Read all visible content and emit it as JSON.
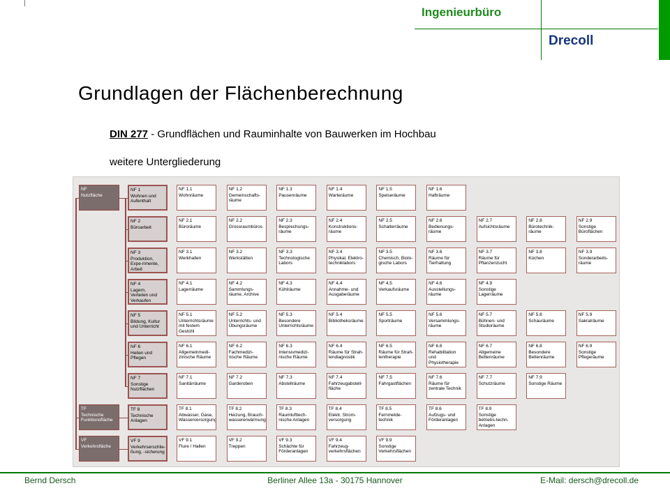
{
  "header": {
    "office": "Ingenieurbüro",
    "company": "Drecoll"
  },
  "title": "Grundlagen der Flächenberechnung",
  "subtitle": {
    "din": "DIN 277",
    "sep": " - ",
    "text": "Grundflächen und Rauminhalte von Bauwerken im Hochbau",
    "line2": "weitere Untergliederung"
  },
  "colors": {
    "accent_green": "#009b00",
    "line_green": "#007a00",
    "brand_navy": "#16357d",
    "diagram_maroon": "#8f4a44",
    "category_gray": "#7c6d6d",
    "panel_gray": "#e9e6e6"
  },
  "diagram": {
    "rows": [
      {
        "category": {
          "code": "NF",
          "label": "Nutzfläche"
        },
        "group": {
          "code": "NF 1",
          "label": "Wohnen und Aufenthalt"
        },
        "items": [
          {
            "code": "NF 1.1",
            "label": "Wohnräume"
          },
          {
            "code": "NF 1.2",
            "label": "Gemeinschafts-räume"
          },
          {
            "code": "NF 1.3",
            "label": "Pausenräume"
          },
          {
            "code": "NF 1.4",
            "label": "Warteräume"
          },
          {
            "code": "NF 1.5",
            "label": "Speiseräume"
          },
          {
            "code": "NF 1.6",
            "label": "Hafträume"
          }
        ]
      },
      {
        "category": null,
        "group": {
          "code": "NF 2",
          "label": "Büroarbeit"
        },
        "items": [
          {
            "code": "NF 2.1",
            "label": "Büroräume"
          },
          {
            "code": "NF 2.2",
            "label": "Grossraumbüros"
          },
          {
            "code": "NF 2.3",
            "label": "Besprechungs-räume"
          },
          {
            "code": "NF 2.4",
            "label": "Konstruktions-räume"
          },
          {
            "code": "NF 2.5",
            "label": "Schalterräume"
          },
          {
            "code": "NF 2.6",
            "label": "Bedienungs-räume"
          },
          {
            "code": "NF 2.7",
            "label": "Aufsichtsräume"
          },
          {
            "code": "NF 2.8",
            "label": "Bürotechnik-räume"
          },
          {
            "code": "NF 2.9",
            "label": "Sonstige Büroflächen"
          }
        ]
      },
      {
        "category": null,
        "group": {
          "code": "NF 3",
          "label": "Produktion, Expe-rimente, Arbeit"
        },
        "items": [
          {
            "code": "NF 3.1",
            "label": "Werkhallen"
          },
          {
            "code": "NF 3.2",
            "label": "Werkstätten"
          },
          {
            "code": "NF 3.3",
            "label": "Technologische Labors"
          },
          {
            "code": "NF 3.4",
            "label": "Physikal. Elektro-techniklabors"
          },
          {
            "code": "NF 3.5",
            "label": "Chemisch, Biolo-gische Labors"
          },
          {
            "code": "NF 3.6",
            "label": "Räume für Tierhaltung"
          },
          {
            "code": "NF 3.7",
            "label": "Räume für Pflanzenzucht"
          },
          {
            "code": "NF 3.8",
            "label": "Küchen"
          },
          {
            "code": "NF 3.9",
            "label": "Sonderarbeits-räume"
          }
        ]
      },
      {
        "category": null,
        "group": {
          "code": "NF 4",
          "label": "Lagern, Verteilen und Verkaufen"
        },
        "items": [
          {
            "code": "NF 4.1",
            "label": "Lagerräume"
          },
          {
            "code": "NF 4.2",
            "label": "Sammlungs-räume, Archive"
          },
          {
            "code": "NF 4.3",
            "label": "Kühlräume"
          },
          {
            "code": "NF 4.4",
            "label": "Annahme- und Ausgaberäume"
          },
          {
            "code": "NF 4.5",
            "label": "Verkaufsräume"
          },
          {
            "code": "NF 4.6",
            "label": "Ausstellungs-räume"
          },
          {
            "code": "NF 4.9",
            "label": "Sonstige Lagerräume"
          }
        ]
      },
      {
        "category": null,
        "group": {
          "code": "NF 5",
          "label": "Bildung, Kultur und Unterricht"
        },
        "items": [
          {
            "code": "NF 5.1",
            "label": "Unterrichtsräume mit festem Gestühl"
          },
          {
            "code": "NF 5.2",
            "label": "Unterrichts- und Übungsräume"
          },
          {
            "code": "NF 5.3",
            "label": "Besondere Unterrichtsräume"
          },
          {
            "code": "NF 5.4",
            "label": "Bibliotheksräume"
          },
          {
            "code": "NF 5.5",
            "label": "Sporträume"
          },
          {
            "code": "NF 5.6",
            "label": "Versammlungs-räume"
          },
          {
            "code": "NF 5.7",
            "label": "Bühnen- und Studioräume"
          },
          {
            "code": "NF 5.8",
            "label": "Schauräume"
          },
          {
            "code": "NF 5.9",
            "label": "Sakralräume"
          }
        ]
      },
      {
        "category": null,
        "group": {
          "code": "NF 6",
          "label": "Heilen und Pflegen"
        },
        "items": [
          {
            "code": "NF 6.1",
            "label": "Allgemeinmedi-zinische Räume"
          },
          {
            "code": "NF 6.2",
            "label": "Fachmedizi-nische Räume"
          },
          {
            "code": "NF 6.3",
            "label": "Intensivmedizi-nische Räume"
          },
          {
            "code": "NF 6.4",
            "label": "Räume für Strah-lendiagnostik"
          },
          {
            "code": "NF 6.5",
            "label": "Räume für Strah-lentherapie"
          },
          {
            "code": "NF 6.6",
            "label": "Rehabilitation und Physiotherapie"
          },
          {
            "code": "NF 6.7",
            "label": "Allgemeine Bettenräume"
          },
          {
            "code": "NF 6.8",
            "label": "Besondere Bettenräume"
          },
          {
            "code": "NF 6.9",
            "label": "Sonstige Pflegeräume"
          }
        ]
      },
      {
        "category": null,
        "group": {
          "code": "NF 7",
          "label": "Sonstige Nutzflächen"
        },
        "items": [
          {
            "code": "NF 7.1",
            "label": "Sanitärräume"
          },
          {
            "code": "NF 7.2",
            "label": "Garderoben"
          },
          {
            "code": "NF 7.3",
            "label": "Abstellräume"
          },
          {
            "code": "NF 7.4",
            "label": "Fahrzeugabstell-fläche"
          },
          {
            "code": "NF 7.5",
            "label": "Fahrgastflächen"
          },
          {
            "code": "NF 7.6",
            "label": "Räume für zentrale Technik"
          },
          {
            "code": "NF 7.7",
            "label": "Schutzräume"
          },
          {
            "code": "NF 7.9",
            "label": "Sonstige Räume"
          }
        ]
      },
      {
        "category": {
          "code": "TF",
          "label": "Technische Funktionsfläche"
        },
        "group": {
          "code": "TF 8",
          "label": "Technische Anlagen"
        },
        "items": [
          {
            "code": "TF 8.1",
            "label": "Abwasser, Gase, Wasserversorgung"
          },
          {
            "code": "TF 8.2",
            "label": "Heizung, Brauch-wassererwärmung"
          },
          {
            "code": "TF 8.3",
            "label": "Raumlufttech-nische Anlagen"
          },
          {
            "code": "TF 8.4",
            "label": "Elektr. Strom-versorgung"
          },
          {
            "code": "TF 8.5",
            "label": "Fernmelde-technik"
          },
          {
            "code": "TF 8.6",
            "label": "Aufzugs- und Förderanlagen"
          },
          {
            "code": "TF 8.9",
            "label": "Sonstige betriebs-techn. Anlagen"
          }
        ]
      },
      {
        "category": {
          "code": "VF",
          "label": "Verkehrsfläche"
        },
        "group": {
          "code": "VF 9",
          "label": "Verkehrserschlie-ßung, -sicherung"
        },
        "items": [
          {
            "code": "VF 9.1",
            "label": "Flure / Hallen"
          },
          {
            "code": "VF 9.2",
            "label": "Treppen"
          },
          {
            "code": "VF 9.3",
            "label": "Schächte für Förderanlagen"
          },
          {
            "code": "VF 9.4",
            "label": "Fahrzeug-verkehrsflächen"
          },
          {
            "code": "VF 9.9",
            "label": "Sonstige Verkehrsflächen"
          }
        ]
      }
    ]
  },
  "footer": {
    "left": "Bernd Dersch",
    "center": "Berliner Allee 13a - 30175 Hannover",
    "right": "E-Mail:  dersch@drecoll.de"
  }
}
